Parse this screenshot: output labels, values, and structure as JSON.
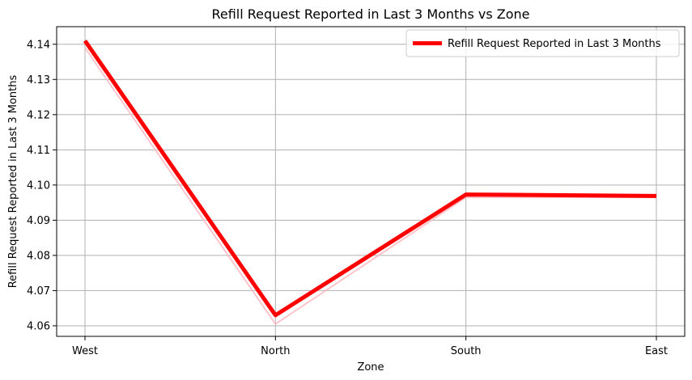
{
  "chart_data": {
    "type": "line",
    "title": "Refill Request Reported in Last 3 Months vs Zone",
    "xlabel": "Zone",
    "ylabel": "Refill Request Reported in Last 3 Months",
    "categories": [
      "West",
      "North",
      "South",
      "East"
    ],
    "series": [
      {
        "name": "Refill Request Reported in Last 3 Months",
        "values": [
          4.141,
          4.063,
          4.0973,
          4.0969
        ],
        "color": "#ff0000"
      }
    ],
    "shadow_values": [
      4.139,
      4.0605,
      4.0965,
      4.0965
    ],
    "shadow_color": "#ffb6c1",
    "ylim": [
      4.057,
      4.145
    ],
    "yticks": [
      "4.06",
      "4.07",
      "4.08",
      "4.09",
      "4.10",
      "4.11",
      "4.12",
      "4.13",
      "4.14"
    ],
    "grid": true,
    "legend_position": "top-right"
  }
}
